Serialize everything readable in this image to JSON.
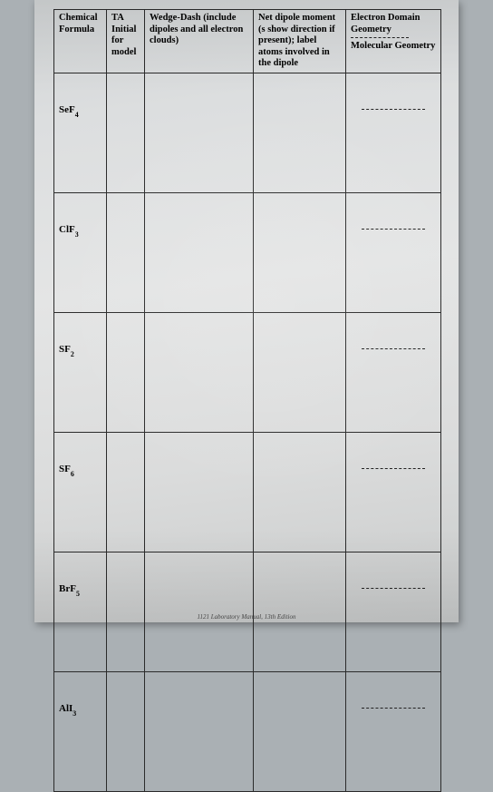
{
  "columns": [
    {
      "header_html": "Chemical Formula"
    },
    {
      "header_html": "TA Initial for model"
    },
    {
      "header_html": "Wedge-Dash (include dipoles and all electron clouds)"
    },
    {
      "header_html": "Net dipole moment (s show direction if present); label atoms involved in the dipole"
    },
    {
      "header_html": "Electron Domain Geometry",
      "sub_header": "Molecular Geometry"
    }
  ],
  "rows": [
    {
      "formula": "SeF",
      "sub": "4"
    },
    {
      "formula": "ClF",
      "sub": "3"
    },
    {
      "formula": "SF",
      "sub": "2"
    },
    {
      "formula": "SF",
      "sub": "6"
    },
    {
      "formula": "BrF",
      "sub": "5"
    },
    {
      "formula": "AlI",
      "sub": "3"
    }
  ],
  "footer": "1121 Laboratory Manual, 13th Edition"
}
